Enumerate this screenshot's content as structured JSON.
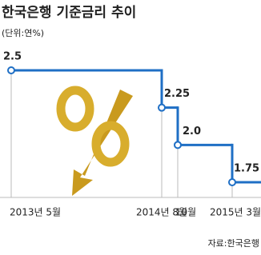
{
  "chart_data": {
    "type": "step",
    "title": "한국은행 기준금리 추이",
    "subtitle": "(단위:연%)",
    "categories": [
      "2013년 5월",
      "2014년 8월",
      "10월",
      "2015년 3월"
    ],
    "values": [
      2.5,
      2.25,
      2.0,
      1.75
    ],
    "value_labels": [
      "2.5",
      "2.25",
      "2.0",
      "1.75"
    ],
    "color": "#1f6fc5",
    "source": "자료:한국은행"
  }
}
